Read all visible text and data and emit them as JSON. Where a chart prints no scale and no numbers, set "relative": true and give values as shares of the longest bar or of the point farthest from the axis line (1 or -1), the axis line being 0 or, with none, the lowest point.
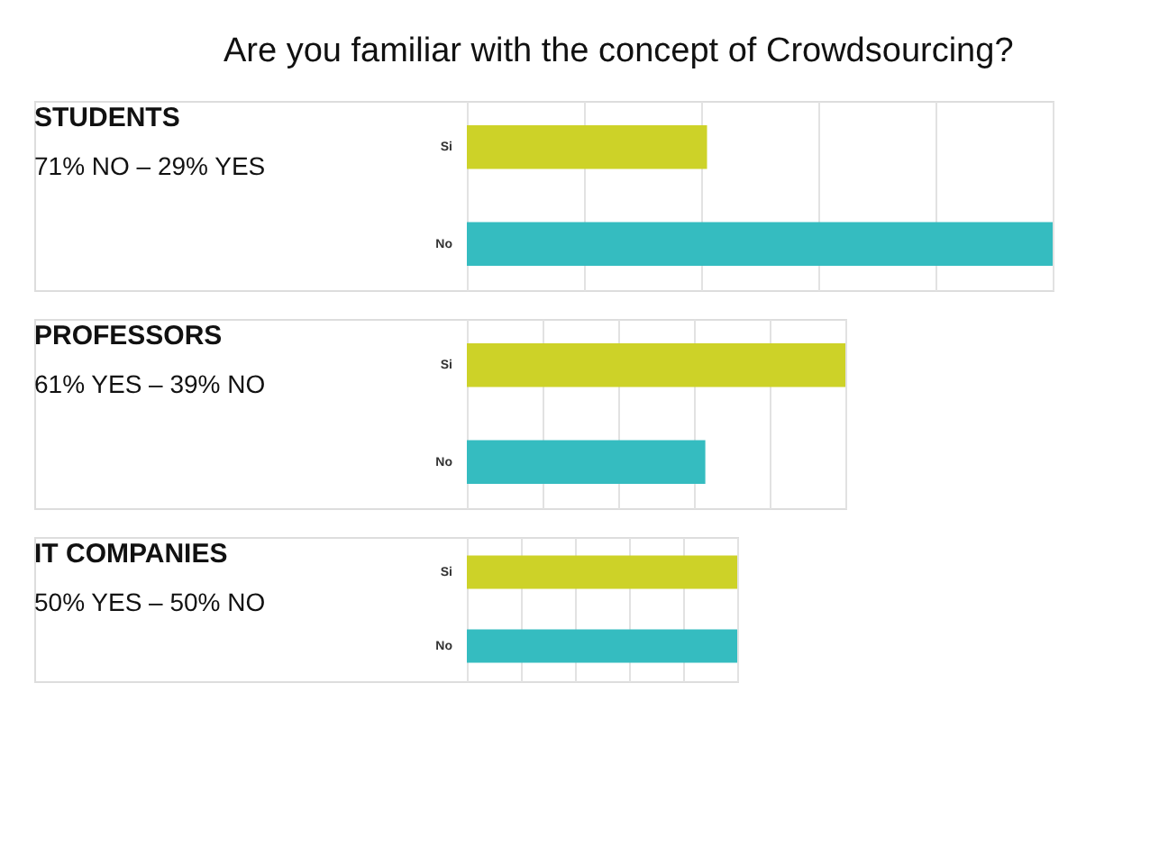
{
  "chart_data": [
    {
      "type": "bar",
      "orientation": "horizontal",
      "relative": true,
      "title": "Are you familiar with the concept of Crowdsourcing?",
      "annotations": [
        "STUDENTS",
        "71% NO – 29% YES"
      ],
      "categories": [
        "Si",
        "No"
      ],
      "values": [
        0.41,
        1
      ],
      "colors": [
        "#cdd228",
        "#35bcc0"
      ],
      "grid": "x"
    },
    {
      "type": "bar",
      "orientation": "horizontal",
      "relative": true,
      "annotations": [
        "PROFESSORS",
        "61% YES – 39% NO"
      ],
      "categories": [
        "Si",
        "No"
      ],
      "values": [
        1,
        0.63
      ],
      "colors": [
        "#cdd228",
        "#35bcc0"
      ],
      "grid": "x"
    },
    {
      "type": "bar",
      "orientation": "horizontal",
      "relative": true,
      "annotations": [
        "IT COMPANIES",
        "50% YES – 50% NO"
      ],
      "categories": [
        "Si",
        "No"
      ],
      "values": [
        1,
        1
      ],
      "colors": [
        "#cdd228",
        "#35bcc0"
      ],
      "grid": "x"
    }
  ]
}
